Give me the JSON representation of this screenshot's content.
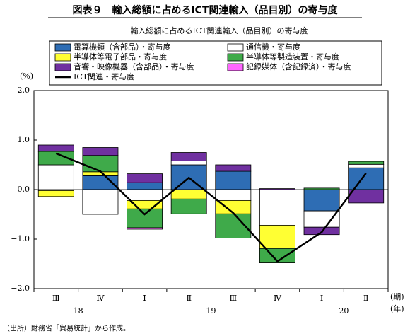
{
  "chart_data": {
    "type": "bar",
    "title": "図表９　輸入総額に占めるICT関連輸入（品目別）の寄与度",
    "subtitle": "輸入総額に占めるICT関連輸入（品目別）の寄与度",
    "y_label": "(%)",
    "x_label": "(期)",
    "year_label": "(年)",
    "source": "（出所）財務省「貿易統計」から作成。",
    "categories": [
      "Ⅲ",
      "Ⅳ",
      "Ⅰ",
      "Ⅱ",
      "Ⅲ",
      "Ⅳ",
      "Ⅰ",
      "Ⅱ"
    ],
    "year_groups": [
      {
        "label": "18",
        "span": 2
      },
      {
        "label": "19",
        "span": 4
      },
      {
        "label": "20",
        "span": 2
      }
    ],
    "ylim": [
      -2,
      2
    ],
    "yticks": [
      {
        "value": -2,
        "label": "−2.0"
      },
      {
        "value": -1,
        "label": "−1.0"
      },
      {
        "value": 0,
        "label": "0.0"
      },
      {
        "value": 1,
        "label": "1.0"
      },
      {
        "value": 2,
        "label": "2.0"
      }
    ],
    "series": [
      {
        "name": "電算機類（含部品）・寄与度",
        "color": "#2e6db4",
        "values": [
          -0.02,
          0.28,
          0.14,
          0.5,
          0.37,
          0,
          -0.43,
          0.44
        ]
      },
      {
        "name": "通信機・寄与度",
        "color": "#ffffff",
        "values": [
          0.5,
          -0.5,
          -0.22,
          0.08,
          -0.22,
          -0.72,
          -0.33,
          0.07
        ]
      },
      {
        "name": "半導体等電子部品・寄与度",
        "color": "#ffff33",
        "values": [
          -0.12,
          0.08,
          -0.17,
          -0.19,
          -0.27,
          -0.47,
          0,
          0
        ]
      },
      {
        "name": "半導体等製造装置・寄与度",
        "color": "#3faa4a",
        "values": [
          0.27,
          0.33,
          -0.38,
          -0.3,
          -0.49,
          -0.29,
          0.03,
          0.06
        ]
      },
      {
        "name": "音響・映像機器（含部品）・寄与度",
        "color": "#7030a0",
        "values": [
          0.13,
          0.16,
          0.18,
          0.17,
          0.13,
          0.02,
          -0.15,
          -0.27
        ]
      },
      {
        "name": "記録媒体（含記録済）・寄与度",
        "color": "#ff66ff",
        "values": [
          0,
          0,
          -0.03,
          0,
          0,
          0,
          0,
          0
        ]
      }
    ],
    "line_series": {
      "name": "ICT関連・寄与度",
      "color": "#000000",
      "values": [
        0.73,
        0.37,
        -0.5,
        0.24,
        -0.47,
        -1.45,
        -0.86,
        0.33
      ]
    }
  }
}
